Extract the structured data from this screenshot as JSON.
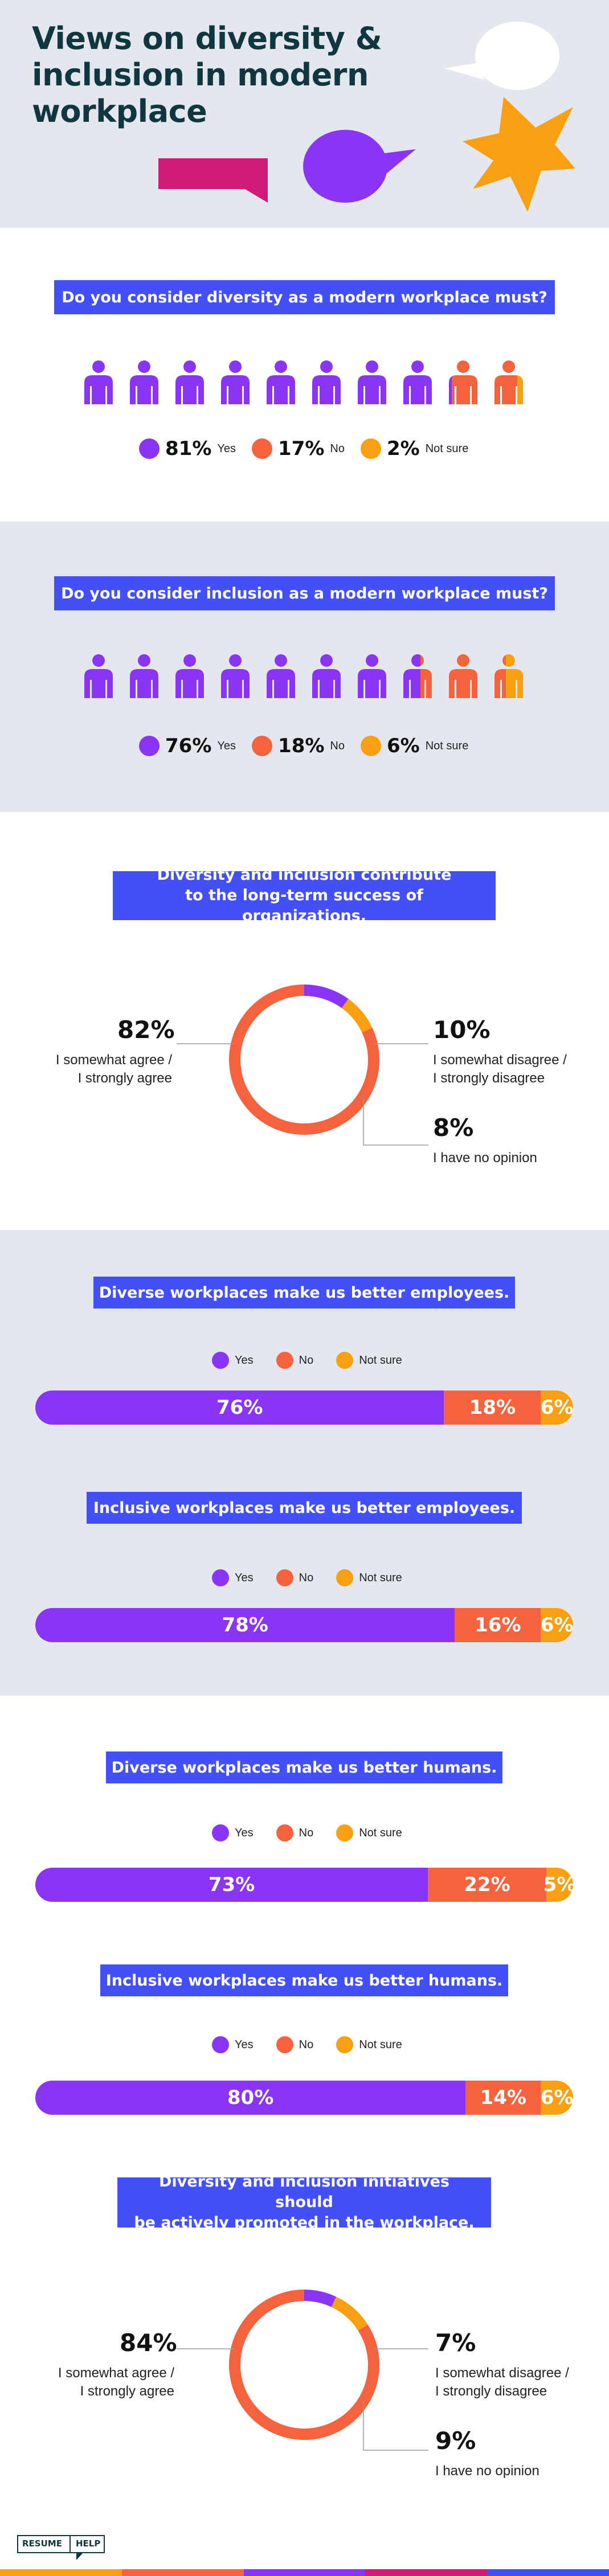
{
  "header": {
    "title": "Views on diversity & inclusion in modern workplace"
  },
  "colors": {
    "yes": "#8a35f5",
    "no": "#f4623e",
    "unsure": "#f8a012",
    "blue": "#4350f7",
    "grey": "#e4e8ee",
    "dark": "#10373f"
  },
  "legend_labels": {
    "yes": "Yes",
    "no": "No",
    "unsure": "Not sure"
  },
  "q1": {
    "title": "Do you consider diversity as a modern workplace must?",
    "yes_pct": "81%",
    "no_pct": "17%",
    "unsure_pct": "2%",
    "yes_label": "Yes",
    "no_label": "No",
    "unsure_label": "Not sure",
    "yes_value": 81,
    "no_value": 17,
    "unsure_value": 2
  },
  "q2": {
    "title": "Do you consider inclusion as a modern workplace must?",
    "yes_pct": "76%",
    "no_pct": "18%",
    "unsure_pct": "6%",
    "yes_label": "Yes",
    "no_label": "No",
    "unsure_label": "Not sure",
    "yes_value": 76,
    "no_value": 18,
    "unsure_value": 6
  },
  "q3": {
    "title": "Diversity and inclusion contribute\nto the long-term success of organizations.",
    "agree_pct": "82%",
    "agree_label": "I somewhat agree /\nI strongly agree",
    "disagree_pct": "10%",
    "disagree_label": "I somewhat disagree /\nI strongly disagree",
    "noop_pct": "8%",
    "noop_label": "I have no opinion",
    "agree_value": 82,
    "disagree_value": 10,
    "noop_value": 8
  },
  "bars": [
    {
      "title": "Diverse workplaces make us better employees.",
      "yes": "76%",
      "no": "18%",
      "unsure": "6%",
      "yes_value": 76,
      "no_value": 18,
      "unsure_value": 6
    },
    {
      "title": "Inclusive workplaces make us better employees.",
      "yes": "78%",
      "no": "16%",
      "unsure": "6%",
      "yes_value": 78,
      "no_value": 16,
      "unsure_value": 6
    },
    {
      "title": "Diverse workplaces make us better humans.",
      "yes": "73%",
      "no": "22%",
      "unsure": "5%",
      "yes_value": 73,
      "no_value": 22,
      "unsure_value": 5
    },
    {
      "title": "Inclusive workplaces make us better humans.",
      "yes": "80%",
      "no": "14%",
      "unsure": "6%",
      "yes_value": 80,
      "no_value": 14,
      "unsure_value": 6
    }
  ],
  "q8": {
    "title": "Diversity and inclusion initiatives should\nbe actively promoted in the workplace.",
    "agree_pct": "84%",
    "agree_label": "I somewhat agree /\nI strongly agree",
    "disagree_pct": "7%",
    "disagree_label": "I somewhat disagree /\nI strongly disagree",
    "noop_pct": "9%",
    "noop_label": "I have no opinion",
    "agree_value": 84,
    "disagree_value": 7,
    "noop_value": 9
  },
  "footer": {
    "logo_line1": "RESUME",
    "logo_line2": "HELP"
  }
}
